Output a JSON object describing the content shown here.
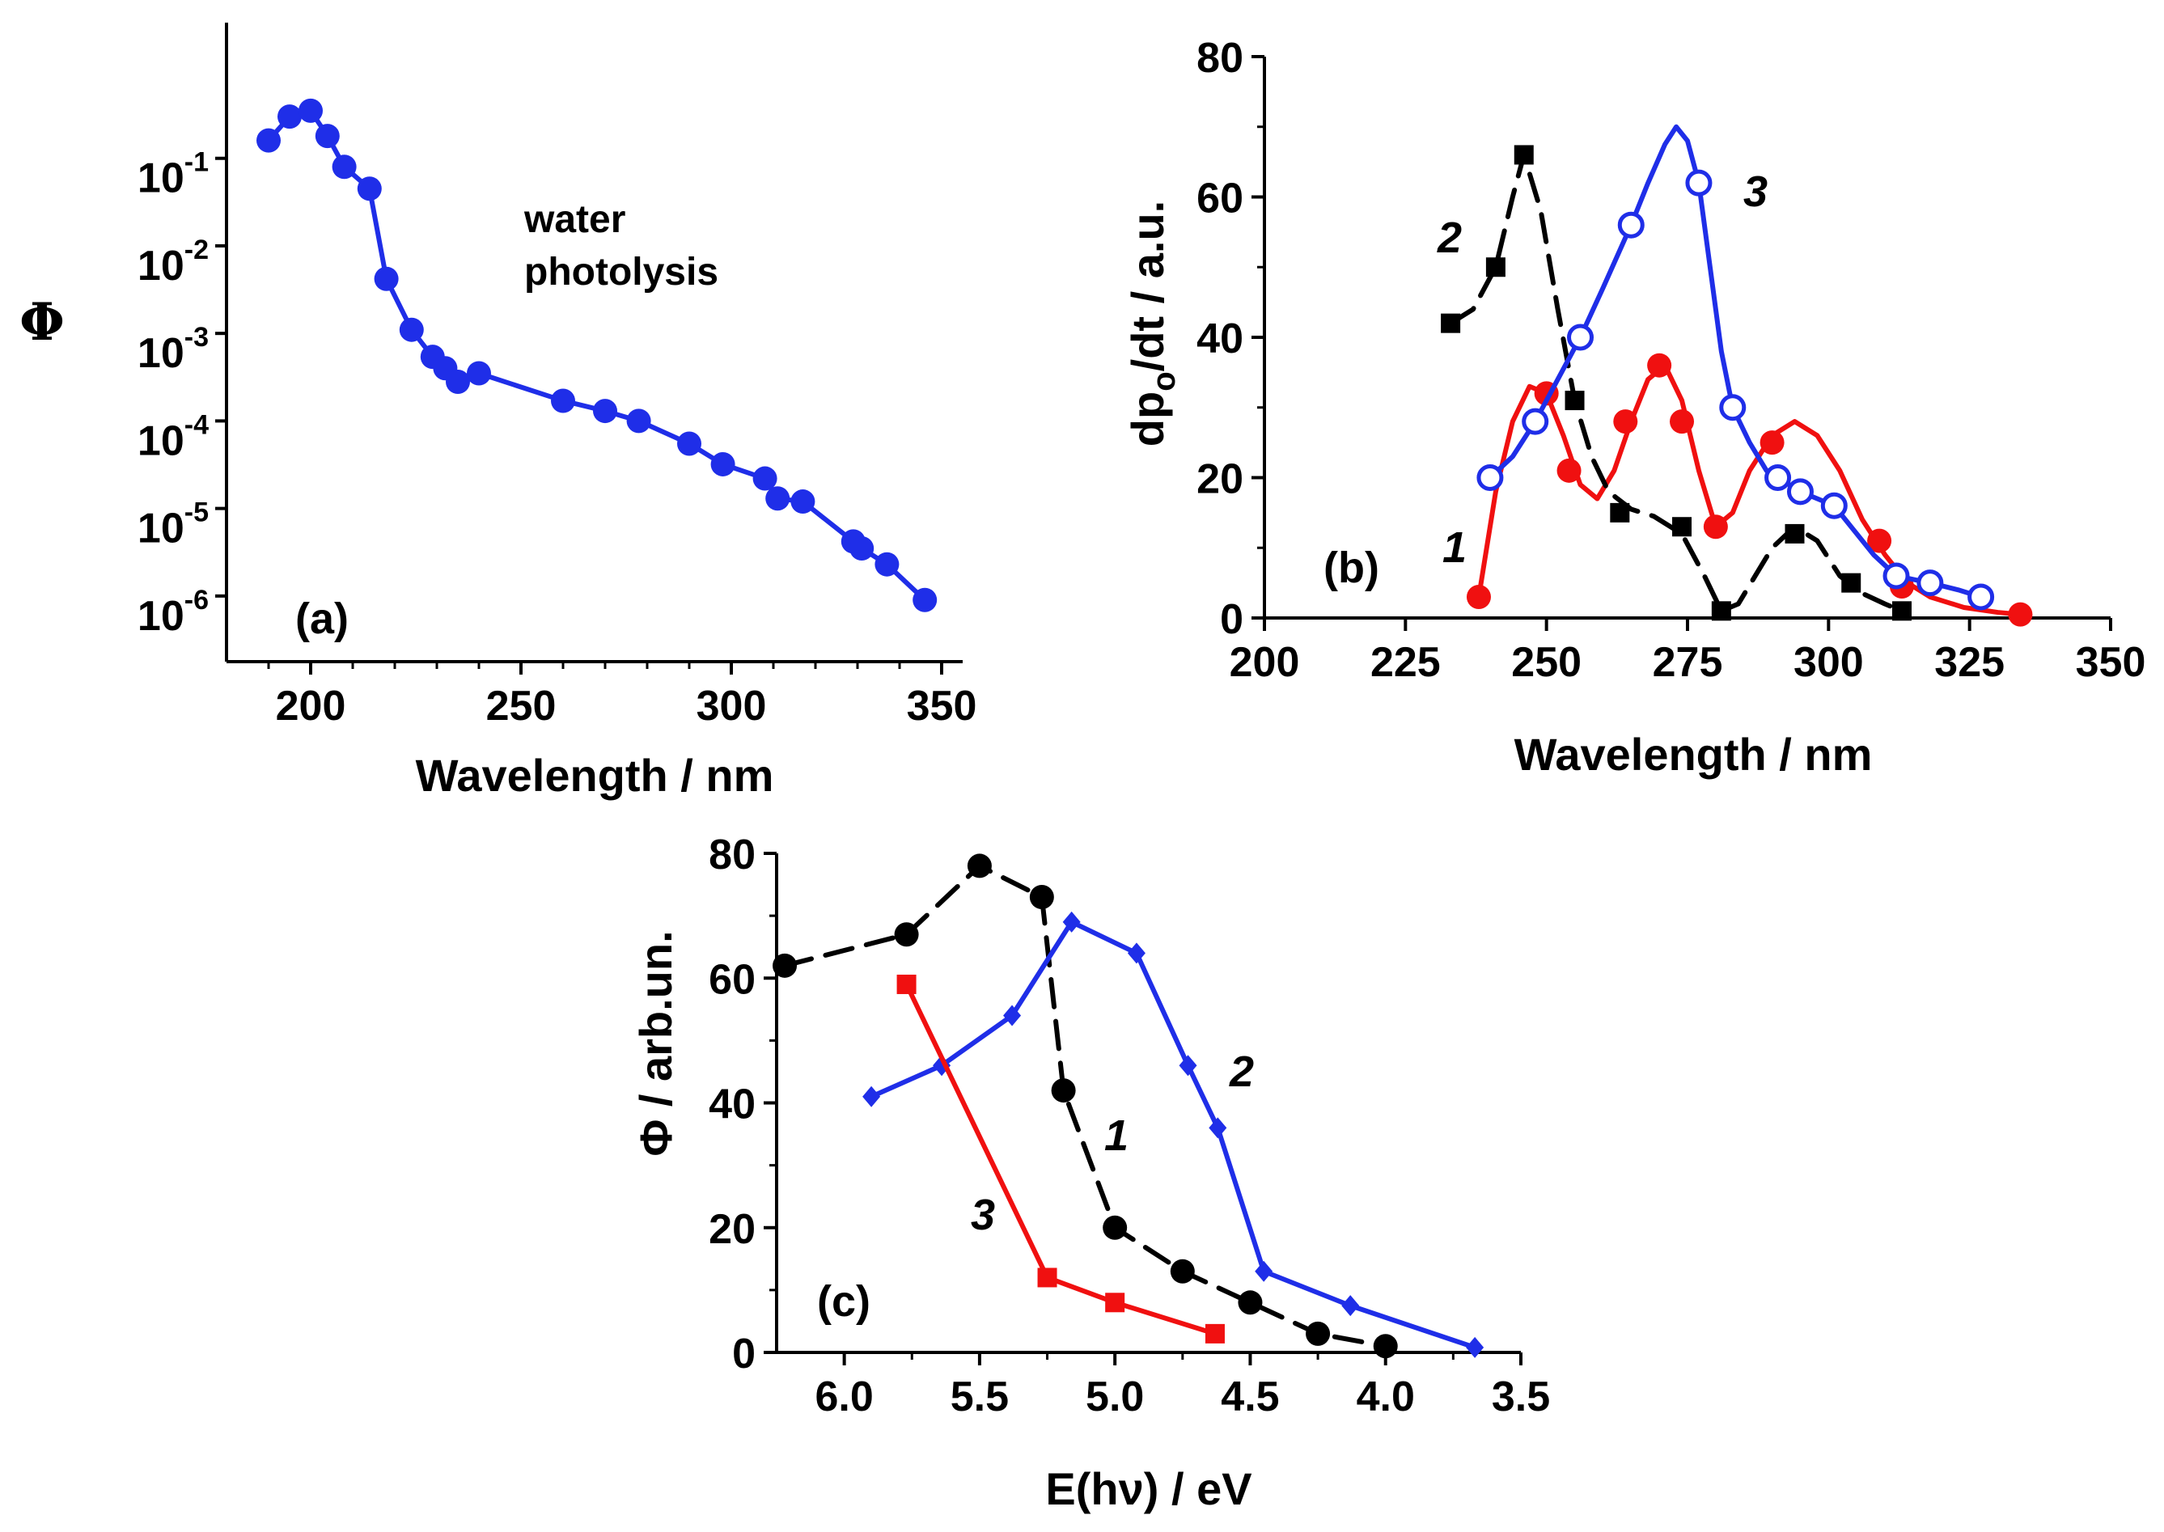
{
  "colors": {
    "blue": "#1f2ee8",
    "red": "#f01010",
    "black": "#000000"
  },
  "chart_data": [
    {
      "type": "line",
      "panel_label": "(a)",
      "xlabel": "Wavelength / nm",
      "ylabel": "Φ",
      "xlim": [
        180,
        355
      ],
      "ylim_log10": [
        -6.75,
        0.55
      ],
      "yscale": "log",
      "xticks": [
        200,
        250,
        300,
        350
      ],
      "yticks": [
        {
          "base": "10",
          "exp": "-1",
          "value": 0.1
        },
        {
          "base": "10",
          "exp": "-2",
          "value": 0.01
        },
        {
          "base": "10",
          "exp": "-3",
          "value": 0.001
        },
        {
          "base": "10",
          "exp": "-4",
          "value": 0.0001
        },
        {
          "base": "10",
          "exp": "-5",
          "value": 1e-05
        },
        {
          "base": "10",
          "exp": "-6",
          "value": 1e-06
        }
      ],
      "annotation": "water\nphotolysis",
      "series": [
        {
          "color": "#1f2ee8",
          "marker": "filled-circle",
          "x": [
            190,
            195,
            200,
            204,
            208,
            214,
            218,
            224,
            229,
            232,
            235,
            240,
            260,
            270,
            278,
            290,
            298,
            308,
            311,
            317,
            329,
            331,
            337,
            346
          ],
          "y": [
            0.16,
            0.3,
            0.35,
            0.18,
            0.08,
            0.045,
            0.0042,
            0.0011,
            0.00054,
            0.0004,
            0.00028,
            0.00035,
            0.00017,
            0.00013,
            0.0001,
            5.5e-05,
            3.2e-05,
            2.2e-05,
            1.3e-05,
            1.2e-05,
            4.2e-06,
            3.5e-06,
            2.3e-06,
            9e-07
          ]
        }
      ]
    },
    {
      "type": "line",
      "panel_label": "(b)",
      "xlabel": "Wavelength / nm",
      "ylabel": "dp",
      "ylabel_sub": "o",
      "ylabel_tail": "/dt / a.u.",
      "xlim": [
        200,
        350
      ],
      "ylim": [
        0,
        80
      ],
      "xticks": [
        200,
        225,
        250,
        275,
        300,
        325,
        350
      ],
      "yticks": [
        0,
        20,
        40,
        60,
        80
      ],
      "series": [
        {
          "name": "1",
          "color": "#f01010",
          "marker": "filled-circle",
          "dashed": false,
          "x": [
            238,
            250,
            254,
            264,
            270,
            274,
            280,
            290,
            309,
            313,
            334
          ],
          "y": [
            3,
            32,
            21,
            28,
            36,
            28,
            13,
            25,
            11,
            4.5,
            0.5
          ],
          "curve_x": [
            238,
            241,
            244,
            247,
            250,
            253,
            256,
            259,
            262,
            265,
            268,
            271,
            274,
            277,
            280,
            283,
            286,
            290,
            294,
            298,
            302,
            306,
            310,
            314,
            318,
            324,
            330,
            334
          ],
          "curve_y": [
            3,
            18,
            28,
            33,
            32,
            26,
            19,
            17,
            21,
            28,
            34,
            36,
            31,
            21,
            13,
            15,
            21,
            26,
            28,
            26,
            21,
            14,
            9,
            5,
            3,
            1.5,
            0.8,
            0.5
          ]
        },
        {
          "name": "2",
          "color": "#000000",
          "marker": "filled-square",
          "dashed": true,
          "x": [
            233,
            241,
            246,
            255,
            263,
            274,
            281,
            294,
            304,
            313
          ],
          "y": [
            42,
            50,
            66,
            31,
            15,
            13,
            1,
            12,
            5,
            1
          ],
          "curve_x": [
            233,
            237,
            241,
            244,
            246,
            249,
            252,
            255,
            258,
            261,
            265,
            269,
            274,
            278,
            281,
            284,
            287,
            290,
            294,
            298,
            302,
            306,
            310,
            313
          ],
          "curve_y": [
            42,
            44,
            50,
            60,
            66,
            58,
            44,
            31,
            23,
            18,
            15.5,
            14.5,
            12,
            6,
            1,
            2,
            6,
            10,
            13,
            11,
            6,
            3.5,
            2,
            1
          ]
        },
        {
          "name": "3",
          "color": "#1f2ee8",
          "marker": "open-circle",
          "dashed": false,
          "x": [
            240,
            248,
            256,
            265,
            277,
            283,
            291,
            295,
            301,
            312,
            318,
            327
          ],
          "y": [
            20,
            28,
            40,
            56,
            62,
            30,
            20,
            18,
            16,
            6,
            5,
            3
          ],
          "curve_x": [
            240,
            244,
            248,
            252,
            256,
            260,
            265,
            268,
            271,
            273,
            275,
            277,
            279,
            281,
            283,
            286,
            289,
            291,
            295,
            298,
            301,
            304,
            308,
            312,
            318,
            323,
            327
          ],
          "curve_y": [
            20,
            23,
            28,
            34,
            40,
            47,
            56,
            62,
            67.5,
            70,
            68,
            62,
            50,
            38,
            30,
            25,
            21,
            20,
            18,
            17,
            16,
            13,
            9,
            6,
            5,
            4,
            3
          ]
        }
      ]
    },
    {
      "type": "line",
      "panel_label": "(c)",
      "xlabel": "E(hν) / eV",
      "ylabel": "Φ  / arb.un.",
      "xlim": [
        6.25,
        3.5
      ],
      "x_reversed": true,
      "ylim": [
        0,
        80
      ],
      "xticks": [
        "6.0",
        "5.5",
        "5.0",
        "4.5",
        "4.0",
        "3.5"
      ],
      "yticks": [
        0,
        20,
        40,
        60,
        80
      ],
      "series": [
        {
          "name": "1",
          "color": "#000000",
          "marker": "filled-circle",
          "dashed": true,
          "x": [
            6.22,
            5.77,
            5.5,
            5.27,
            5.19,
            5.0,
            4.75,
            4.5,
            4.25,
            4.0
          ],
          "y": [
            62,
            67,
            78,
            73,
            42,
            20,
            13,
            8,
            3,
            1
          ]
        },
        {
          "name": "2",
          "color": "#1f2ee8",
          "marker": "filled-diamond",
          "dashed": false,
          "x": [
            5.9,
            5.64,
            5.38,
            5.16,
            4.92,
            4.73,
            4.62,
            4.45,
            4.13,
            3.67
          ],
          "y": [
            41,
            46,
            54,
            69,
            64,
            46,
            36,
            13,
            7.5,
            0.8
          ]
        },
        {
          "name": "3",
          "color": "#f01010",
          "marker": "filled-square",
          "dashed": false,
          "x": [
            5.77,
            5.25,
            5.0,
            4.63
          ],
          "y": [
            59,
            12,
            8,
            3
          ]
        }
      ]
    }
  ]
}
